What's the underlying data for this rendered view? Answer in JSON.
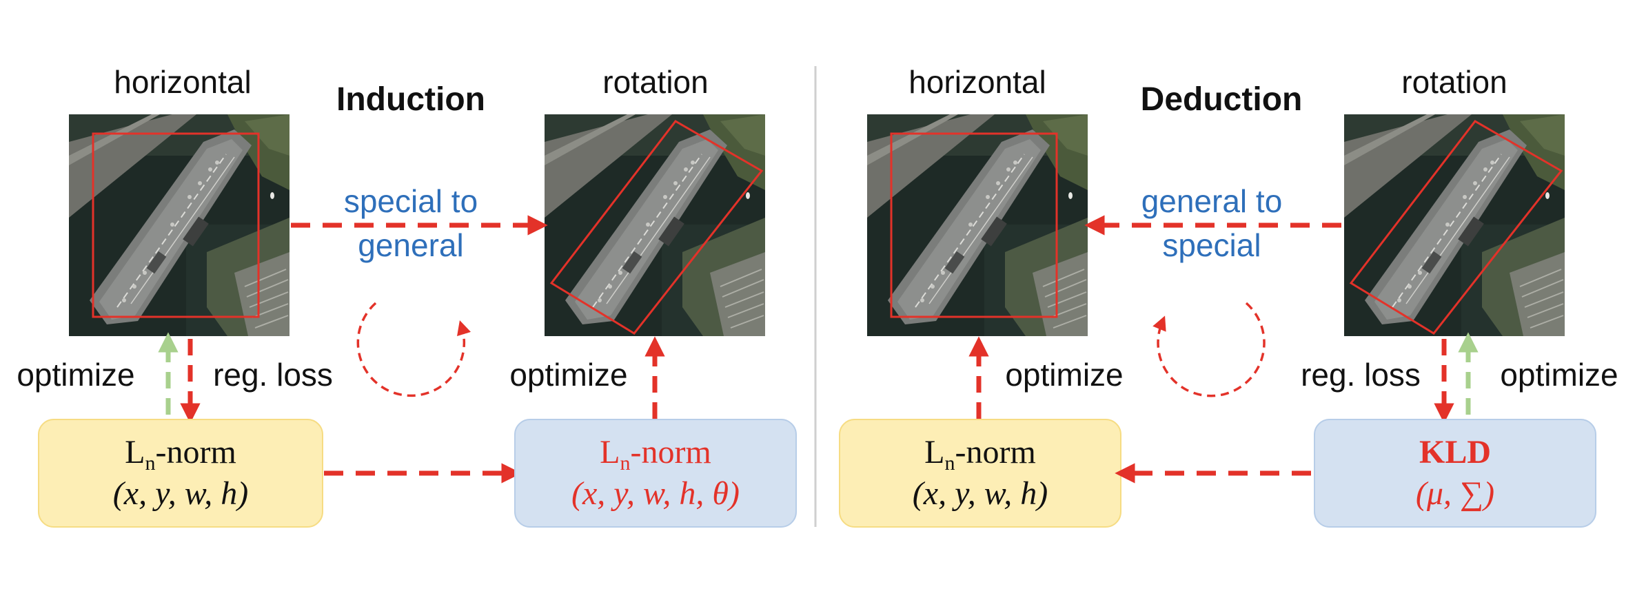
{
  "colors": {
    "red": "#e33229",
    "green": "#a8d08d",
    "blue_text": "#2e6fba",
    "yellow_box": "#fdeeb5",
    "yellow_stroke": "#f6dc83",
    "blue_box": "#d4e1f1",
    "blue_stroke": "#b7cde8",
    "divider": "#cfcfcf"
  },
  "left": {
    "title": "Induction",
    "img_left_label": "horizontal",
    "img_right_label": "rotation",
    "arrow_text_1": "special to",
    "arrow_text_2": "general",
    "optimize_left": "optimize",
    "reg_loss": "reg. loss",
    "optimize_right": "optimize",
    "box_left_l1": "L",
    "box_left_sub": "n",
    "box_left_rest": "-norm",
    "box_left_line2": "(x, y, w, h)",
    "box_right_l1": "L",
    "box_right_sub": "n",
    "box_right_rest": "-norm",
    "box_right_line2": "(x, y, w, h, θ)"
  },
  "right": {
    "title": "Deduction",
    "img_left_label": "horizontal",
    "img_right_label": "rotation",
    "arrow_text_1": "general to",
    "arrow_text_2": "special",
    "optimize_left": "optimize",
    "reg_loss": "reg. loss",
    "optimize_right": "optimize",
    "box_left_l1": "L",
    "box_left_sub": "n",
    "box_left_rest": "-norm",
    "box_left_line2": "(x, y, w, h)",
    "box_right_line1": "KLD",
    "box_right_line2": "(μ, ∑)"
  }
}
